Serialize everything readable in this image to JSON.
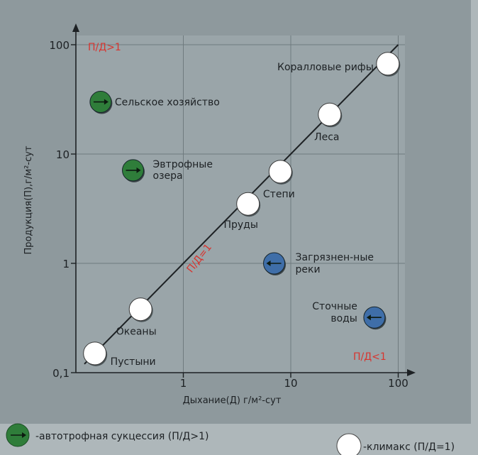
{
  "chart_data": {
    "type": "scatter",
    "xlabel": "Дыхание(Д) г/м²-сут",
    "ylabel": "Продукция(П),г/м²-сут",
    "xscale": "log",
    "yscale": "log",
    "xlim": [
      0.1,
      100
    ],
    "ylim": [
      0.1,
      100
    ],
    "x_ticks": [
      "1",
      "10",
      "100"
    ],
    "y_ticks": [
      "0,1",
      "1",
      "10",
      "100"
    ],
    "grid": true,
    "ratio_labels": {
      "above": "П/Д>1",
      "diagonal": "П/Д=1",
      "below": "П/Д<1"
    },
    "series": [
      {
        "name": "-автотрофная сукцессия (П/Д>1)",
        "marker": "green-arrow-circle",
        "color": "#2f7d3a",
        "points": [
          {
            "label": "Сельское хозяйство",
            "x": 0.17,
            "y": 30
          },
          {
            "label": "Эвтрофные озера",
            "x": 0.34,
            "y": 7.1
          }
        ]
      },
      {
        "name": "-климакс (П/Д=1)",
        "marker": "white-circle",
        "color": "#ffffff",
        "points": [
          {
            "label": "Коралловые рифы",
            "x": 80,
            "y": 67
          },
          {
            "label": "Леса",
            "x": 23,
            "y": 23
          },
          {
            "label": "Степи",
            "x": 8,
            "y": 6.9
          },
          {
            "label": "Пруды",
            "x": 4,
            "y": 3.5
          },
          {
            "label": "Океаны",
            "x": 0.4,
            "y": 0.38
          },
          {
            "label": "Пустыни",
            "x": 0.15,
            "y": 0.15
          }
        ]
      },
      {
        "name": "",
        "marker": "blue-arrow-circle",
        "color": "#3f6ea8",
        "points": [
          {
            "label": "Загрязнен-ные реки",
            "x": 7,
            "y": 1
          },
          {
            "label": "Сточные воды",
            "x": 60,
            "y": 0.32
          }
        ]
      }
    ]
  },
  "legend": {
    "autotroph": "-автотрофная сукцессия (П/Д>1)",
    "climax": "-климакс (П/Д=1)"
  }
}
